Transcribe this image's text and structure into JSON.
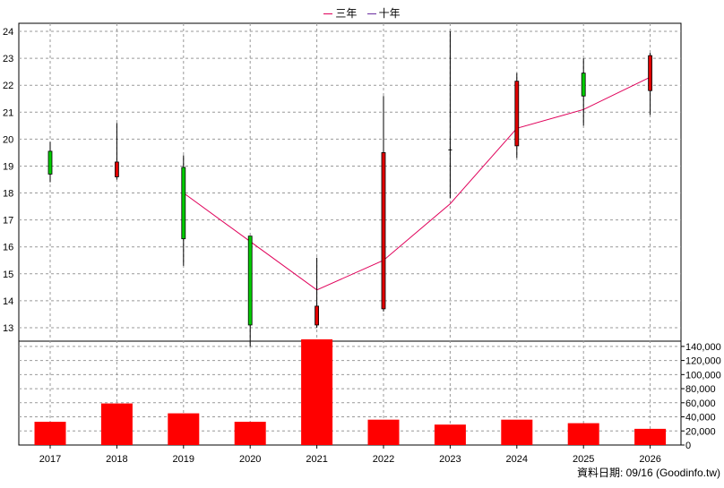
{
  "chart_data": {
    "type": "candlestick+bar",
    "categories": [
      "2017",
      "2018",
      "2019",
      "2020",
      "2021",
      "2022",
      "2023",
      "2024",
      "2025",
      "2026"
    ],
    "price_axis": {
      "ylim": [
        12.5,
        24.3
      ],
      "ticks": [
        13,
        14,
        15,
        16,
        17,
        18,
        19,
        20,
        21,
        22,
        23,
        24
      ]
    },
    "volume_axis": {
      "ylim": [
        0,
        150000
      ],
      "ticks": [
        0,
        20000,
        40000,
        60000,
        80000,
        100000,
        120000,
        140000
      ],
      "tick_labels": [
        "0",
        "20,000",
        "40,000",
        "60,000",
        "80,000",
        "100,000",
        "120,000",
        "140,000"
      ]
    },
    "candles": [
      {
        "year": "2017",
        "open": 18.7,
        "close": 19.55,
        "high": 19.9,
        "low": 18.4
      },
      {
        "year": "2018",
        "open": 19.15,
        "close": 18.6,
        "high": 20.6,
        "low": 18.5
      },
      {
        "year": "2019",
        "open": 16.3,
        "close": 18.95,
        "high": 19.4,
        "low": 15.3
      },
      {
        "year": "2020",
        "open": 13.1,
        "close": 16.4,
        "high": 16.4,
        "low": 12.3
      },
      {
        "year": "2021",
        "open": 13.8,
        "close": 13.1,
        "high": 15.6,
        "low": 13.0
      },
      {
        "year": "2022",
        "open": 19.5,
        "close": 13.7,
        "high": 21.6,
        "low": 13.6
      },
      {
        "year": "2023",
        "open": 19.6,
        "close": 19.6,
        "high": 24.0,
        "low": 17.8
      },
      {
        "year": "2024",
        "open": 22.15,
        "close": 19.75,
        "high": 22.45,
        "low": 19.3
      },
      {
        "year": "2025",
        "open": 21.6,
        "close": 22.45,
        "high": 23.0,
        "low": 20.5
      },
      {
        "year": "2026",
        "open": 23.1,
        "close": 21.8,
        "high": 23.2,
        "low": 20.9
      }
    ],
    "series": [
      {
        "name": "三年",
        "color": "#e0005a",
        "values": [
          null,
          null,
          18.0,
          16.2,
          14.4,
          15.5,
          17.6,
          20.4,
          21.1,
          22.3
        ]
      },
      {
        "name": "十年",
        "color": "#6a2ca0",
        "values": [
          null,
          null,
          null,
          null,
          null,
          null,
          null,
          null,
          null,
          null
        ]
      }
    ],
    "volume": [
      33000,
      59000,
      45000,
      33000,
      150000,
      36000,
      29000,
      36000,
      31000,
      23000
    ],
    "colors": {
      "up": "#00cc00",
      "down": "#e00000",
      "volume": "#ff0000",
      "grid": "#999999"
    }
  },
  "legend": [
    {
      "label": "三年",
      "color": "#e0005a"
    },
    {
      "label": "十年",
      "color": "#6a2ca0"
    }
  ],
  "source_text": "資料日期: 09/16 (Goodinfo.tw)"
}
